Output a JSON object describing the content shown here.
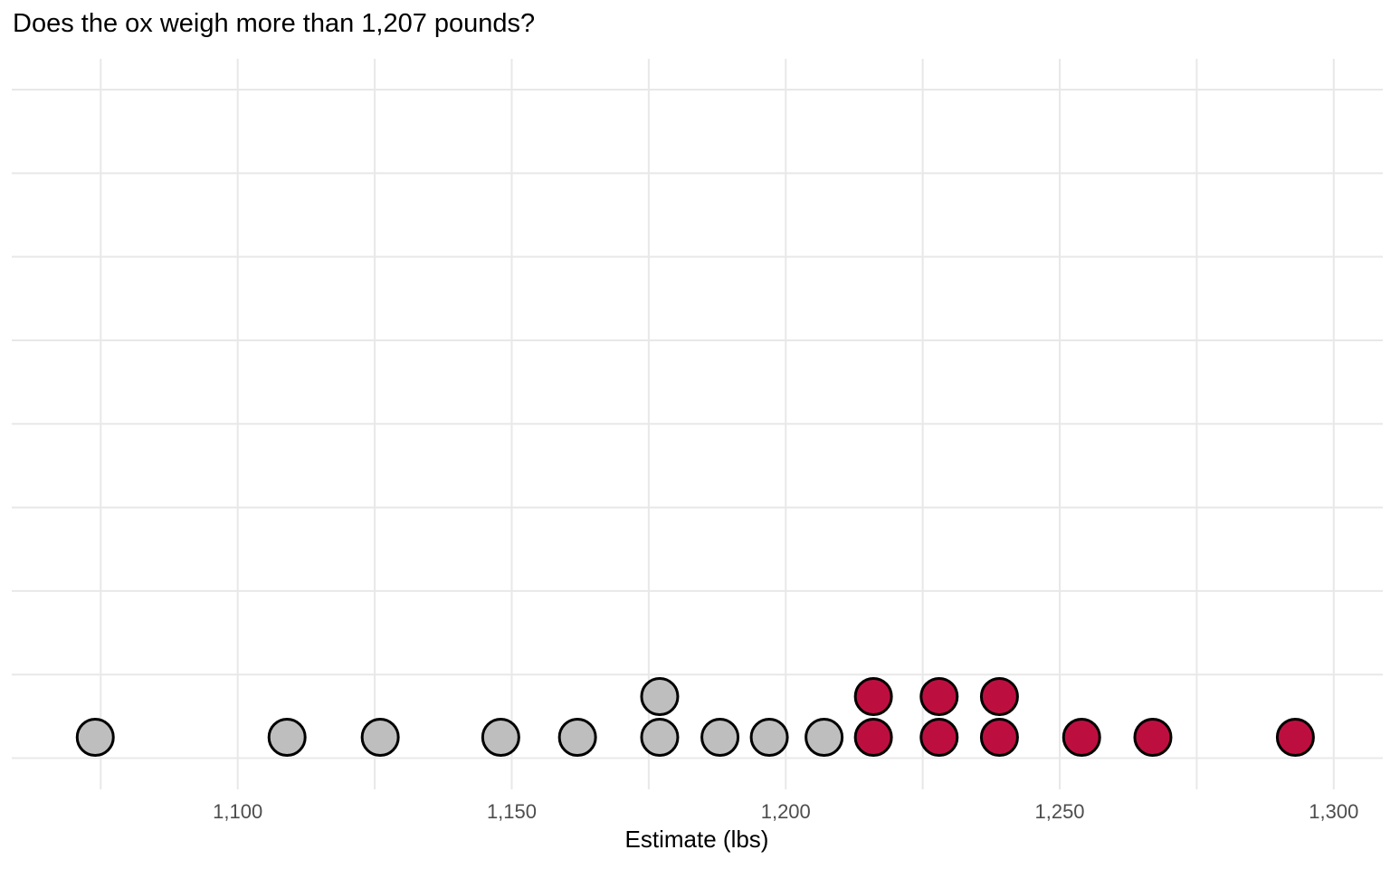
{
  "title": "Does the ox weigh more than 1,207 pounds?",
  "chart_data": {
    "type": "dotplot",
    "title": "Does the ox weigh more than 1,207 pounds?",
    "xlabel": "Estimate (lbs)",
    "threshold_lbs": 1207,
    "xlim": [
      1059,
      1309
    ],
    "x_ticks": [
      1100,
      1150,
      1200,
      1250,
      1300
    ],
    "x_tick_labels": [
      "1,100",
      "1,150",
      "1,200",
      "1,250",
      "1,300"
    ],
    "x_minor_ticks": [
      1075,
      1125,
      1175,
      1225,
      1275
    ],
    "grid": "on",
    "n_horizontal_gridlines": 9,
    "estimates": [
      {
        "value": 1074,
        "over_threshold": false
      },
      {
        "value": 1109,
        "over_threshold": false
      },
      {
        "value": 1126,
        "over_threshold": false
      },
      {
        "value": 1148,
        "over_threshold": false
      },
      {
        "value": 1162,
        "over_threshold": false
      },
      {
        "value": 1177,
        "over_threshold": false
      },
      {
        "value": 1177,
        "over_threshold": false
      },
      {
        "value": 1188,
        "over_threshold": false
      },
      {
        "value": 1197,
        "over_threshold": false
      },
      {
        "value": 1207,
        "over_threshold": false
      },
      {
        "value": 1216,
        "over_threshold": true
      },
      {
        "value": 1216,
        "over_threshold": true
      },
      {
        "value": 1228,
        "over_threshold": true
      },
      {
        "value": 1228,
        "over_threshold": true
      },
      {
        "value": 1239,
        "over_threshold": true
      },
      {
        "value": 1239,
        "over_threshold": true
      },
      {
        "value": 1254,
        "over_threshold": true
      },
      {
        "value": 1267,
        "over_threshold": true
      },
      {
        "value": 1293,
        "over_threshold": true
      }
    ],
    "colors": {
      "under_threshold_fill": "#bebebe",
      "over_threshold_fill": "#bd0f3f",
      "dot_outline": "#000000",
      "gridline": "#e8e8e8",
      "tick_label": "#4d4d4d",
      "title_text": "#000000"
    }
  }
}
